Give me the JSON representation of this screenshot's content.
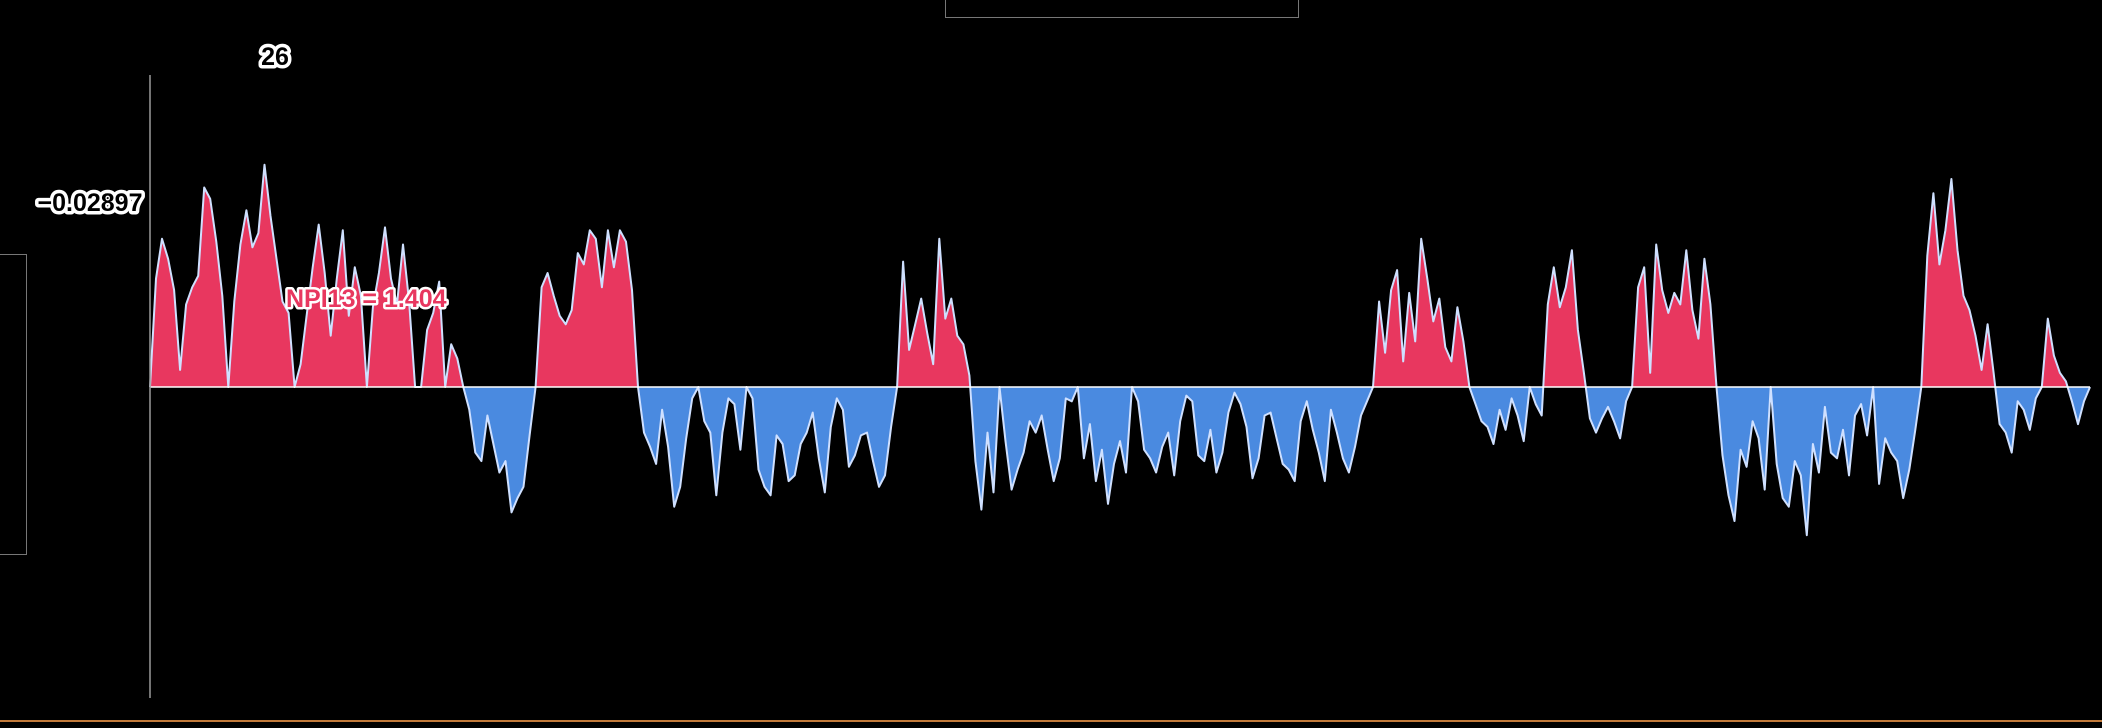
{
  "chart_data": {
    "type": "area",
    "baseline": 0,
    "ylim": [
      -2.0,
      3.0
    ],
    "x_count": 331,
    "colors": {
      "positive": "#e8375f",
      "negative": "#4a8ae0",
      "line": "#cfe0ff",
      "background": "#000000"
    },
    "crosshair_x_label": "26",
    "crosshair_y_label": "−0.02897",
    "annotation": "NPI13 = 1.404",
    "values": [
      0,
      0.38,
      0.52,
      0.45,
      0.34,
      0.06,
      0.29,
      0.35,
      0.39,
      0.7,
      0.66,
      0.51,
      0.32,
      0,
      0.3,
      0.5,
      0.62,
      0.49,
      0.54,
      0.78,
      0.6,
      0.45,
      0.3,
      0.26,
      0,
      0.08,
      0.25,
      0.42,
      0.57,
      0.4,
      0.18,
      0.38,
      0.55,
      0.25,
      0.42,
      0.32,
      0,
      0.28,
      0.4,
      0.56,
      0.38,
      0.29,
      0.5,
      0.3,
      0,
      0,
      0.2,
      0.26,
      0.37,
      0,
      0.15,
      0.1,
      0,
      -0.08,
      -0.23,
      -0.26,
      -0.1,
      -0.2,
      -0.3,
      -0.26,
      -0.44,
      -0.39,
      -0.35,
      -0.17,
      0,
      0.35,
      0.4,
      0.32,
      0.25,
      0.22,
      0.27,
      0.47,
      0.43,
      0.55,
      0.52,
      0.35,
      0.55,
      0.42,
      0.55,
      0.51,
      0.34,
      0,
      -0.16,
      -0.21,
      -0.27,
      -0.08,
      -0.21,
      -0.42,
      -0.35,
      -0.18,
      -0.04,
      0,
      -0.12,
      -0.16,
      -0.38,
      -0.16,
      -0.04,
      -0.06,
      -0.22,
      0,
      -0.04,
      -0.29,
      -0.35,
      -0.38,
      -0.17,
      -0.2,
      -0.33,
      -0.31,
      -0.2,
      -0.16,
      -0.09,
      -0.25,
      -0.37,
      -0.14,
      -0.04,
      -0.08,
      -0.28,
      -0.24,
      -0.17,
      -0.16,
      -0.26,
      -0.35,
      -0.31,
      -0.14,
      0,
      0.44,
      0.13,
      0.22,
      0.31,
      0.19,
      0.08,
      0.52,
      0.24,
      0.31,
      0.18,
      0.15,
      0.04,
      -0.26,
      -0.43,
      -0.16,
      -0.37,
      0,
      -0.19,
      -0.36,
      -0.29,
      -0.23,
      -0.12,
      -0.16,
      -0.1,
      -0.22,
      -0.33,
      -0.25,
      -0.04,
      -0.05,
      0,
      -0.25,
      -0.13,
      -0.33,
      -0.22,
      -0.41,
      -0.27,
      -0.19,
      -0.3,
      0,
      -0.05,
      -0.22,
      -0.25,
      -0.3,
      -0.21,
      -0.16,
      -0.31,
      -0.12,
      -0.03,
      -0.05,
      -0.24,
      -0.26,
      -0.15,
      -0.3,
      -0.23,
      -0.09,
      -0.02,
      -0.06,
      -0.14,
      -0.32,
      -0.25,
      -0.1,
      -0.09,
      -0.18,
      -0.27,
      -0.29,
      -0.33,
      -0.12,
      -0.05,
      -0.15,
      -0.23,
      -0.33,
      -0.08,
      -0.16,
      -0.25,
      -0.3,
      -0.21,
      -0.1,
      -0.05,
      0,
      0.3,
      0.12,
      0.34,
      0.41,
      0.09,
      0.33,
      0.16,
      0.52,
      0.38,
      0.23,
      0.31,
      0.14,
      0.09,
      0.28,
      0.16,
      0,
      -0.06,
      -0.12,
      -0.14,
      -0.2,
      -0.08,
      -0.15,
      -0.04,
      -0.1,
      -0.19,
      0,
      -0.06,
      -0.1,
      0.29,
      0.42,
      0.28,
      0.35,
      0.48,
      0.2,
      0.05,
      -0.11,
      -0.16,
      -0.11,
      -0.07,
      -0.12,
      -0.18,
      -0.05,
      0,
      0.35,
      0.42,
      0.05,
      0.5,
      0.34,
      0.26,
      0.33,
      0.29,
      0.48,
      0.27,
      0.17,
      0.45,
      0.29,
      0,
      -0.24,
      -0.38,
      -0.47,
      -0.22,
      -0.28,
      -0.12,
      -0.18,
      -0.36,
      0,
      -0.27,
      -0.39,
      -0.42,
      -0.26,
      -0.31,
      -0.52,
      -0.2,
      -0.3,
      -0.07,
      -0.23,
      -0.25,
      -0.15,
      -0.31,
      -0.1,
      -0.06,
      -0.17,
      0,
      -0.34,
      -0.18,
      -0.23,
      -0.26,
      -0.39,
      -0.29,
      -0.15,
      0,
      0.46,
      0.68,
      0.43,
      0.55,
      0.73,
      0.48,
      0.32,
      0.27,
      0.18,
      0.06,
      0.22,
      0.05,
      -0.13,
      -0.16,
      -0.23,
      -0.05,
      -0.08,
      -0.15,
      -0.04,
      0,
      0.24,
      0.11,
      0.05,
      0.02,
      -0.05,
      -0.13,
      -0.05,
      0
    ]
  }
}
